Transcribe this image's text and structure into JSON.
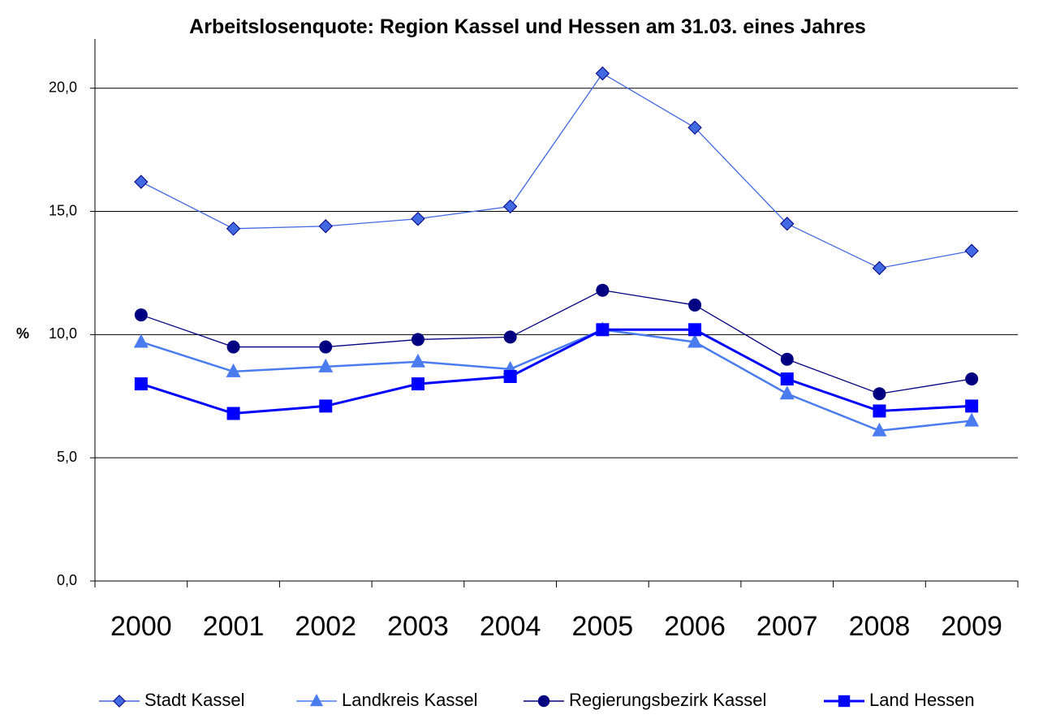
{
  "chart_data": {
    "type": "line",
    "title": "Arbeitslosenquote: Region Kassel und Hessen am 31.03. eines Jahres",
    "ylabel": "%",
    "categories": [
      "2000",
      "2001",
      "2002",
      "2003",
      "2004",
      "2005",
      "2006",
      "2007",
      "2008",
      "2009"
    ],
    "series": [
      {
        "name": "Stadt Kassel",
        "color": "#4169e1",
        "marker": "diamond",
        "values": [
          16.2,
          14.3,
          14.4,
          14.7,
          15.2,
          20.6,
          18.4,
          14.5,
          12.7,
          13.4
        ]
      },
      {
        "name": "Landkreis Kassel",
        "color": "#4a7cf0",
        "marker": "triangle",
        "values": [
          9.7,
          8.5,
          8.7,
          8.9,
          8.6,
          10.2,
          9.7,
          7.6,
          6.1,
          6.5
        ]
      },
      {
        "name": "Regierungsbezirk Kassel",
        "color": "#000080",
        "marker": "circle",
        "values": [
          10.8,
          9.5,
          9.5,
          9.8,
          9.9,
          11.8,
          11.2,
          9.0,
          7.6,
          8.2
        ]
      },
      {
        "name": "Land Hessen",
        "color": "#0000ff",
        "marker": "square",
        "values": [
          8.0,
          6.8,
          7.1,
          8.0,
          8.3,
          10.2,
          10.2,
          8.2,
          6.9,
          7.1
        ]
      }
    ],
    "ylim": [
      0,
      22
    ],
    "yticks": [
      {
        "value": 0,
        "label": "0,0"
      },
      {
        "value": 5,
        "label": "5,0"
      },
      {
        "value": 10,
        "label": "10,0"
      },
      {
        "value": 15,
        "label": "15,0"
      },
      {
        "value": 20,
        "label": "20,0"
      }
    ],
    "grid": true,
    "legend": "bottom"
  }
}
